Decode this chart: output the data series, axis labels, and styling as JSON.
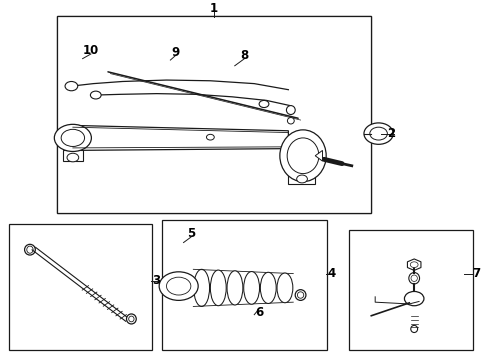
{
  "bg_color": "#ffffff",
  "line_color": "#1a1a1a",
  "figsize": [
    4.89,
    3.6
  ],
  "dpi": 100,
  "boxes": {
    "main": [
      0.115,
      0.04,
      0.76,
      0.59
    ],
    "bolt": [
      0.018,
      0.62,
      0.31,
      0.975
    ],
    "boot": [
      0.33,
      0.61,
      0.67,
      0.975
    ],
    "tierod": [
      0.715,
      0.638,
      0.968,
      0.975
    ]
  },
  "labels": {
    "1": [
      0.437,
      0.018,
      9
    ],
    "2": [
      0.8,
      0.368,
      9
    ],
    "3": [
      0.318,
      0.78,
      9
    ],
    "4": [
      0.678,
      0.76,
      9
    ],
    "5": [
      0.39,
      0.648,
      9
    ],
    "6": [
      0.53,
      0.87,
      9
    ],
    "7": [
      0.975,
      0.76,
      9
    ],
    "8": [
      0.5,
      0.148,
      9
    ],
    "9": [
      0.358,
      0.14,
      9
    ],
    "10": [
      0.185,
      0.135,
      9
    ]
  }
}
